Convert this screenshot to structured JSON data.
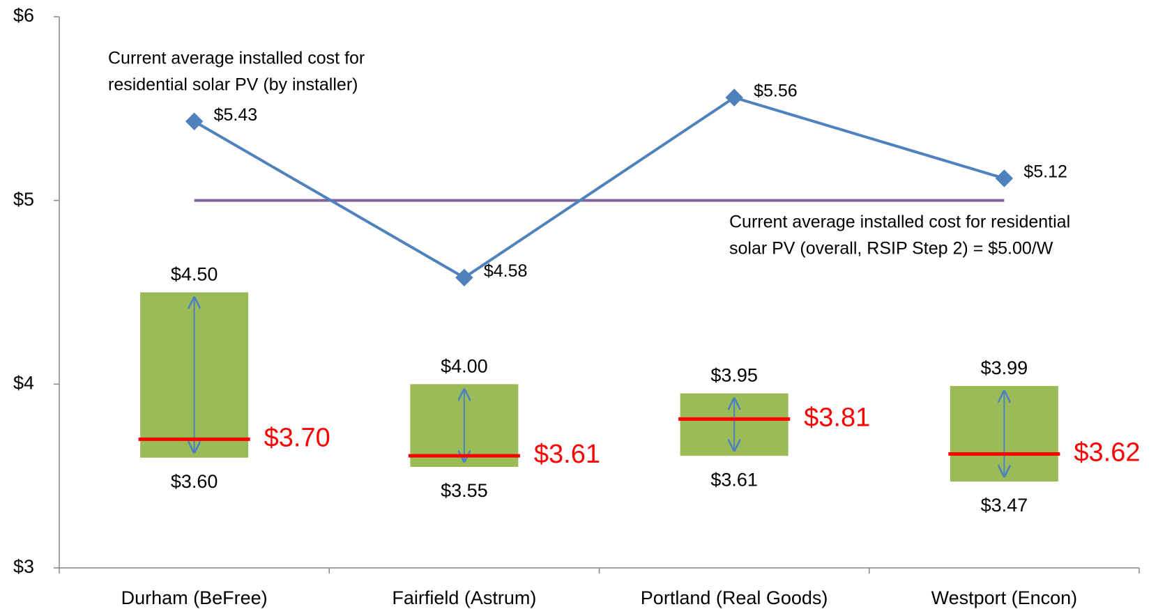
{
  "chart_data": {
    "type": "line",
    "categories": [
      "Durham (BeFree)",
      "Fairfield (Astrum)",
      "Portland (Real Goods)",
      "Westport (Encon)"
    ],
    "ylim": [
      3,
      6
    ],
    "yticks": [
      {
        "value": 3,
        "label": "$3"
      },
      {
        "value": 4,
        "label": "$4"
      },
      {
        "value": 5,
        "label": "$5"
      },
      {
        "value": 6,
        "label": "$6"
      }
    ],
    "series": [
      {
        "color": "#4f81bd",
        "values": [
          5.43,
          4.58,
          5.56,
          5.12
        ],
        "value_labels": [
          "$5.43",
          "$4.58",
          "$5.56",
          "$5.12"
        ]
      }
    ],
    "reference": {
      "value": 5.0,
      "color": "#8064a2"
    },
    "ranges": {
      "color": "#9bbb59",
      "arrow_color": "#4f81bd",
      "low": [
        3.6,
        3.55,
        3.61,
        3.47
      ],
      "low_labels": [
        "$3.60",
        "$3.55",
        "$3.61",
        "$3.47"
      ],
      "high": [
        4.5,
        4.0,
        3.95,
        3.99
      ],
      "high_labels": [
        "$4.50",
        "$4.00",
        "$3.95",
        "$3.99"
      ]
    },
    "medians": {
      "color": "#ff0000",
      "values": [
        3.7,
        3.61,
        3.81,
        3.62
      ],
      "value_labels": [
        "$3.70",
        "$3.61",
        "$3.81",
        "$3.62"
      ]
    },
    "annotations": [
      {
        "lines": [
          "Current average installed cost for",
          "residential  solar PV (by installer)"
        ]
      },
      {
        "lines": [
          "Current average installed cost for residential",
          "solar PV (overall, RSIP Step 2) = $5.00/W"
        ]
      }
    ]
  }
}
